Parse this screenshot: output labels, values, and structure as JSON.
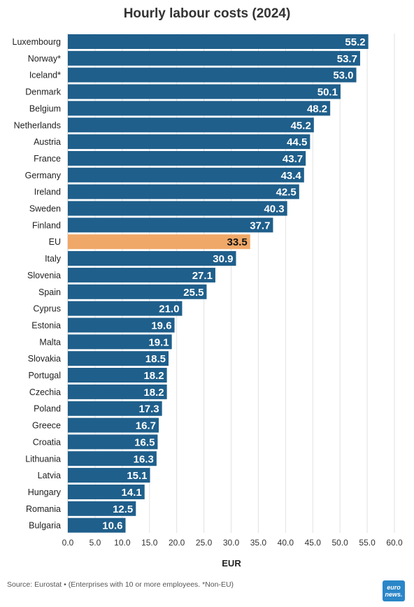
{
  "chart_data": {
    "type": "bar",
    "orientation": "horizontal",
    "title": "Hourly labour costs (2024)",
    "xlabel": "EUR",
    "ylabel": "",
    "xlim": [
      0,
      60
    ],
    "ticks": [
      "0.0",
      "5.0",
      "10.0",
      "15.0",
      "20.0",
      "25.0",
      "30.0",
      "35.0",
      "40.0",
      "45.0",
      "50.0",
      "55.0",
      "60.0"
    ],
    "tick_values": [
      0,
      5,
      10,
      15,
      20,
      25,
      30,
      35,
      40,
      45,
      50,
      55,
      60
    ],
    "grid": true,
    "bar_color": "#1f5f8b",
    "highlight_color": "#f0a868",
    "highlight_category": "EU",
    "categories": [
      "Luxembourg",
      "Norway*",
      "Iceland*",
      "Denmark",
      "Belgium",
      "Netherlands",
      "Austria",
      "France",
      "Germany",
      "Ireland",
      "Sweden",
      "Finland",
      "EU",
      "Italy",
      "Slovenia",
      "Spain",
      "Cyprus",
      "Estonia",
      "Malta",
      "Slovakia",
      "Portugal",
      "Czechia",
      "Poland",
      "Greece",
      "Croatia",
      "Lithuania",
      "Latvia",
      "Hungary",
      "Romania",
      "Bulgaria"
    ],
    "values": [
      55.2,
      53.7,
      53.0,
      50.1,
      48.2,
      45.2,
      44.5,
      43.7,
      43.4,
      42.5,
      40.3,
      37.7,
      33.5,
      30.9,
      27.1,
      25.5,
      21.0,
      19.6,
      19.1,
      18.5,
      18.2,
      18.2,
      17.3,
      16.7,
      16.5,
      16.3,
      15.1,
      14.1,
      12.5,
      10.6
    ],
    "value_labels": [
      "55.2",
      "53.7",
      "53.0",
      "50.1",
      "48.2",
      "45.2",
      "44.5",
      "43.7",
      "43.4",
      "42.5",
      "40.3",
      "37.7",
      "33.5",
      "30.9",
      "27.1",
      "25.5",
      "21.0",
      "19.6",
      "19.1",
      "18.5",
      "18.2",
      "18.2",
      "17.3",
      "16.7",
      "16.5",
      "16.3",
      "15.1",
      "14.1",
      "12.5",
      "10.6"
    ]
  },
  "footer": {
    "source": "Source: Eurostat • (Enterprises with 10 or more employees. *Non-EU)",
    "logo_line1": "euro",
    "logo_line2": "news."
  }
}
